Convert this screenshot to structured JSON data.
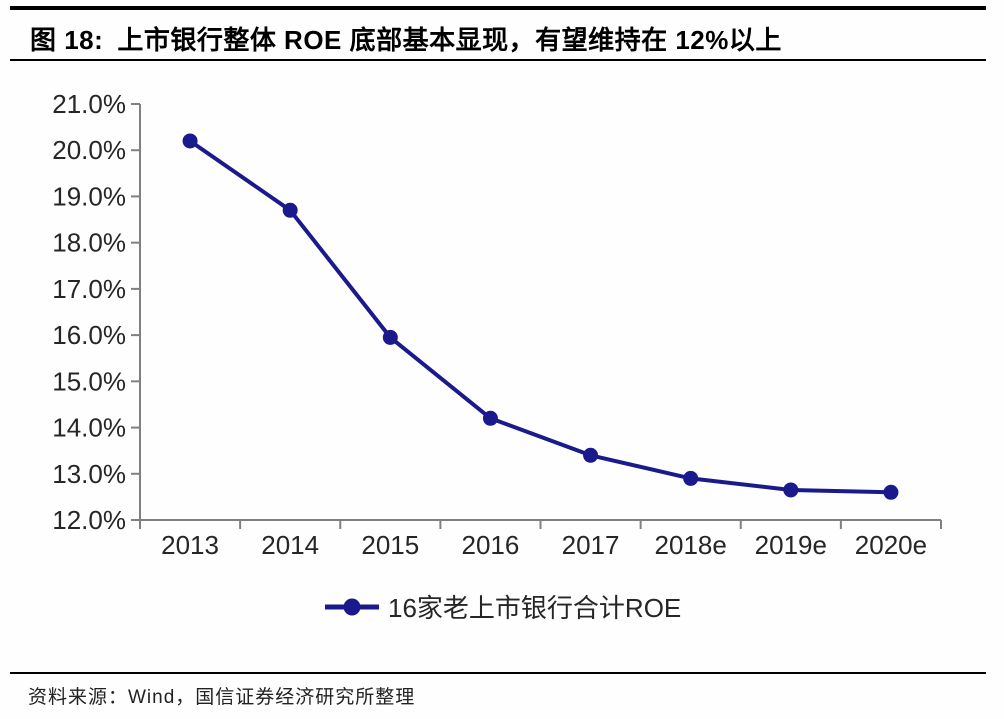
{
  "figure": {
    "title_prefix": "图 18:",
    "title_text": "上市银行整体 ROE 底部基本显现，有望维持在 12%以上",
    "source": "资料来源：Wind，国信证券经济研究所整理"
  },
  "colors": {
    "series": "#1A1A8C",
    "axis": "#808080",
    "tick_label": "#262626",
    "rule": "#000000"
  },
  "chart_data": {
    "type": "line",
    "title": "上市银行整体 ROE 底部基本显现，有望维持在 12%以上",
    "categories": [
      "2013",
      "2014",
      "2015",
      "2016",
      "2017",
      "2018e",
      "2019e",
      "2020e"
    ],
    "series": [
      {
        "name": "16家老上市银行合计ROE",
        "values": [
          20.2,
          18.7,
          15.95,
          14.2,
          13.4,
          12.9,
          12.65,
          12.6
        ]
      }
    ],
    "unit": "%",
    "ylim": [
      12.0,
      21.0
    ],
    "ytick_step": 1.0,
    "ytick_labels": [
      "12.0%",
      "13.0%",
      "14.0%",
      "15.0%",
      "16.0%",
      "17.0%",
      "18.0%",
      "19.0%",
      "20.0%",
      "21.0%"
    ],
    "xlabel": "",
    "ylabel": "",
    "grid": false,
    "legend_position": "bottom",
    "marker": "circle"
  }
}
